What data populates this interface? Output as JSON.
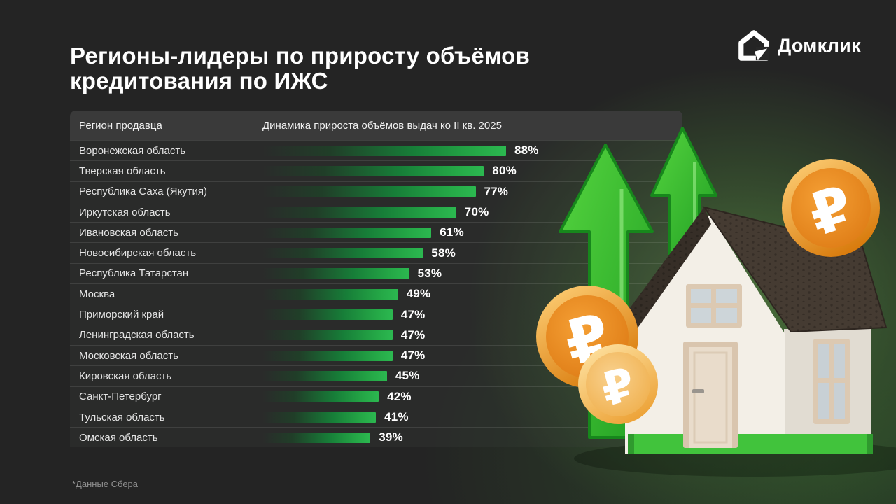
{
  "header": {
    "title": "Регионы-лидеры по приросту объёмов кредитования по ИЖС"
  },
  "brand": {
    "name": "Домклик"
  },
  "table": {
    "columns": {
      "region": "Регион продавца",
      "dynamic": "Динамика прироста объёмов выдач ко II кв. 2025"
    },
    "rows": [
      {
        "region": "Воронежская область",
        "value": 88,
        "label": "88%"
      },
      {
        "region": "Тверская область",
        "value": 80,
        "label": "80%"
      },
      {
        "region": "Республика Саха (Якутия)",
        "value": 77,
        "label": "77%"
      },
      {
        "region": "Иркутская область",
        "value": 70,
        "label": "70%"
      },
      {
        "region": "Ивановская область",
        "value": 61,
        "label": "61%"
      },
      {
        "region": "Новосибирская область",
        "value": 58,
        "label": "58%"
      },
      {
        "region": "Республика Татарстан",
        "value": 53,
        "label": "53%"
      },
      {
        "region": "Москва",
        "value": 49,
        "label": "49%"
      },
      {
        "region": "Приморский край",
        "value": 47,
        "label": "47%"
      },
      {
        "region": "Ленинградская область",
        "value": 47,
        "label": "47%"
      },
      {
        "region": "Московская область",
        "value": 47,
        "label": "47%"
      },
      {
        "region": "Кировская область",
        "value": 45,
        "label": "45%"
      },
      {
        "region": "Санкт-Петербург",
        "value": 42,
        "label": "42%"
      },
      {
        "region": "Тульская область",
        "value": 41,
        "label": "41%"
      },
      {
        "region": "Омская область",
        "value": 39,
        "label": "39%"
      }
    ]
  },
  "footnote": "*Данные Сбера",
  "illustration": {
    "ruble_sign": "₽"
  },
  "colors": {
    "background": "#242424",
    "header_band": "#3a3a3a",
    "bar_green_bright": "#2cb850",
    "bar_green_mid": "#177e38",
    "arrow_green": "#35bb2e",
    "coin_orange": "#e8851c",
    "coin_rim_gold": "#ffd27a",
    "house_wall": "#f3efe7",
    "roof_brown": "#453b32",
    "base_green": "#41c33c",
    "glow_green": "#3f6132"
  },
  "chart_data": {
    "type": "bar",
    "orientation": "horizontal",
    "title": "Регионы-лидеры по приросту объёмов кредитования по ИЖС",
    "series_label": "Динамика прироста объёмов выдач ко II кв. 2025",
    "categories": [
      "Воронежская область",
      "Тверская область",
      "Республика Саха (Якутия)",
      "Иркутская область",
      "Ивановская область",
      "Новосибирская область",
      "Республика Татарстан",
      "Москва",
      "Приморский край",
      "Ленинградская область",
      "Московская область",
      "Кировская область",
      "Санкт-Петербург",
      "Тульская область",
      "Омская область"
    ],
    "values": [
      88,
      80,
      77,
      70,
      61,
      58,
      53,
      49,
      47,
      47,
      47,
      45,
      42,
      41,
      39
    ],
    "unit": "%",
    "xlim": [
      0,
      100
    ],
    "grid": false,
    "legend": false,
    "source_note": "*Данные Сбера"
  }
}
